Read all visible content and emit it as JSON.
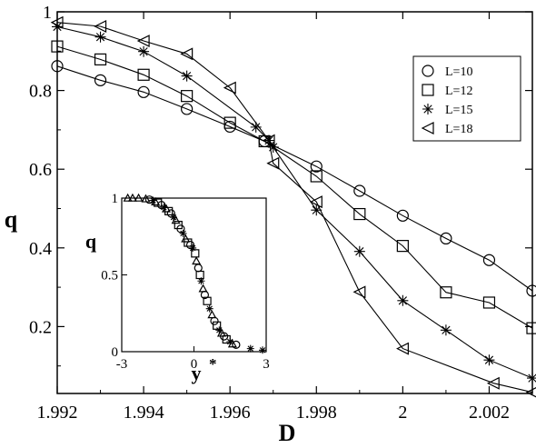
{
  "chart_data": [
    {
      "type": "scatter",
      "title": "",
      "xlabel": "D",
      "ylabel": "q",
      "xlim": [
        1.992,
        2.003
      ],
      "ylim": [
        0.03,
        1.0
      ],
      "xticks": [
        1.992,
        1.994,
        1.996,
        1.998,
        2.0,
        2.002
      ],
      "xtick_labels": [
        "1.992",
        "1.994",
        "1.996",
        "1.998",
        "2",
        "2.002"
      ],
      "yticks": [
        0.2,
        0.4,
        0.6,
        0.8,
        1.0
      ],
      "ytick_labels": [
        "0.2",
        "0.4",
        "0.6",
        "0.8",
        "1"
      ],
      "grid": false,
      "legend": "top-right",
      "series": [
        {
          "name": "L=10",
          "marker": "circle",
          "x": [
            1.992,
            1.993,
            1.994,
            1.995,
            1.996,
            1.9968,
            1.998,
            1.999,
            2.0,
            2.001,
            2.002,
            2.003
          ],
          "y": [
            0.862,
            0.826,
            0.796,
            0.753,
            0.708,
            0.671,
            0.607,
            0.545,
            0.482,
            0.424,
            0.369,
            0.291
          ]
        },
        {
          "name": "L=12",
          "marker": "square",
          "x": [
            1.992,
            1.993,
            1.994,
            1.995,
            1.996,
            1.9968,
            1.998,
            1.999,
            2.0,
            2.001,
            2.002,
            2.003
          ],
          "y": [
            0.912,
            0.879,
            0.84,
            0.786,
            0.718,
            0.671,
            0.582,
            0.486,
            0.405,
            0.287,
            0.261,
            0.196
          ]
        },
        {
          "name": "L=15",
          "marker": "asterisk",
          "x": [
            1.992,
            1.993,
            1.994,
            1.995,
            1.9966,
            1.9969,
            1.997,
            1.998,
            1.999,
            2.0,
            2.001,
            2.002,
            2.003
          ],
          "y": [
            0.962,
            0.936,
            0.899,
            0.837,
            0.707,
            0.673,
            0.656,
            0.496,
            0.391,
            0.266,
            0.191,
            0.115,
            0.069
          ]
        },
        {
          "name": "L=18",
          "marker": "triangle-left",
          "x": [
            1.992,
            1.993,
            1.994,
            1.995,
            1.996,
            1.9969,
            1.997,
            1.998,
            1.999,
            2.0,
            2.0021,
            2.003
          ],
          "y": [
            0.973,
            0.963,
            0.926,
            0.893,
            0.807,
            0.673,
            0.615,
            0.517,
            0.288,
            0.144,
            0.056,
            0.033
          ]
        }
      ]
    },
    {
      "type": "scatter",
      "title": "",
      "xlabel": "y",
      "xlabel_superscript": "*",
      "ylabel": "q",
      "xlim": [
        -3,
        3
      ],
      "ylim": [
        0,
        1
      ],
      "xticks": [
        -3,
        0,
        3
      ],
      "xtick_labels": [
        "-3",
        "0",
        "3"
      ],
      "yticks": [
        0,
        0.5,
        1
      ],
      "ytick_labels": [
        "0",
        "0.5",
        "1"
      ],
      "grid": false,
      "legend": "none",
      "points": [
        {
          "marker": "triangle",
          "x": -2.75,
          "y": 1.0
        },
        {
          "marker": "triangle",
          "x": -2.55,
          "y": 1.0
        },
        {
          "marker": "triangle",
          "x": -2.3,
          "y": 1.0
        },
        {
          "marker": "triangle",
          "x": -2.0,
          "y": 0.995
        },
        {
          "marker": "circle",
          "x": -1.85,
          "y": 0.99
        },
        {
          "marker": "asterisk",
          "x": -1.7,
          "y": 0.985
        },
        {
          "marker": "triangle",
          "x": -1.6,
          "y": 0.975
        },
        {
          "marker": "square",
          "x": -1.5,
          "y": 0.97
        },
        {
          "marker": "circle",
          "x": -1.35,
          "y": 0.955
        },
        {
          "marker": "asterisk",
          "x": -1.25,
          "y": 0.94
        },
        {
          "marker": "triangle",
          "x": -1.15,
          "y": 0.93
        },
        {
          "marker": "square",
          "x": -1.05,
          "y": 0.915
        },
        {
          "marker": "circle",
          "x": -0.95,
          "y": 0.9
        },
        {
          "marker": "asterisk",
          "x": -0.85,
          "y": 0.875
        },
        {
          "marker": "triangle",
          "x": -0.75,
          "y": 0.855
        },
        {
          "marker": "square",
          "x": -0.65,
          "y": 0.825
        },
        {
          "marker": "circle",
          "x": -0.55,
          "y": 0.8
        },
        {
          "marker": "asterisk",
          "x": -0.45,
          "y": 0.77
        },
        {
          "marker": "triangle",
          "x": -0.35,
          "y": 0.735
        },
        {
          "marker": "square",
          "x": -0.25,
          "y": 0.71
        },
        {
          "marker": "circle",
          "x": -0.15,
          "y": 0.695
        },
        {
          "marker": "asterisk",
          "x": -0.05,
          "y": 0.675
        },
        {
          "marker": "square",
          "x": 0.05,
          "y": 0.64
        },
        {
          "marker": "triangle",
          "x": 0.1,
          "y": 0.59
        },
        {
          "marker": "circle",
          "x": 0.18,
          "y": 0.545
        },
        {
          "marker": "square",
          "x": 0.25,
          "y": 0.5
        },
        {
          "marker": "asterisk",
          "x": 0.3,
          "y": 0.46
        },
        {
          "marker": "triangle",
          "x": 0.38,
          "y": 0.41
        },
        {
          "marker": "circle",
          "x": 0.45,
          "y": 0.37
        },
        {
          "marker": "square",
          "x": 0.55,
          "y": 0.33
        },
        {
          "marker": "asterisk",
          "x": 0.65,
          "y": 0.28
        },
        {
          "marker": "triangle",
          "x": 0.75,
          "y": 0.24
        },
        {
          "marker": "circle",
          "x": 0.85,
          "y": 0.2
        },
        {
          "marker": "square",
          "x": 0.95,
          "y": 0.17
        },
        {
          "marker": "asterisk",
          "x": 1.05,
          "y": 0.14
        },
        {
          "marker": "triangle",
          "x": 1.15,
          "y": 0.12
        },
        {
          "marker": "circle",
          "x": 1.25,
          "y": 0.1
        },
        {
          "marker": "square",
          "x": 1.35,
          "y": 0.08
        },
        {
          "marker": "asterisk",
          "x": 1.5,
          "y": 0.065
        },
        {
          "marker": "triangle",
          "x": 1.6,
          "y": 0.05
        },
        {
          "marker": "circle",
          "x": 1.75,
          "y": 0.045
        },
        {
          "marker": "asterisk",
          "x": 2.35,
          "y": 0.02
        },
        {
          "marker": "asterisk",
          "x": 2.85,
          "y": 0.01
        }
      ]
    }
  ]
}
